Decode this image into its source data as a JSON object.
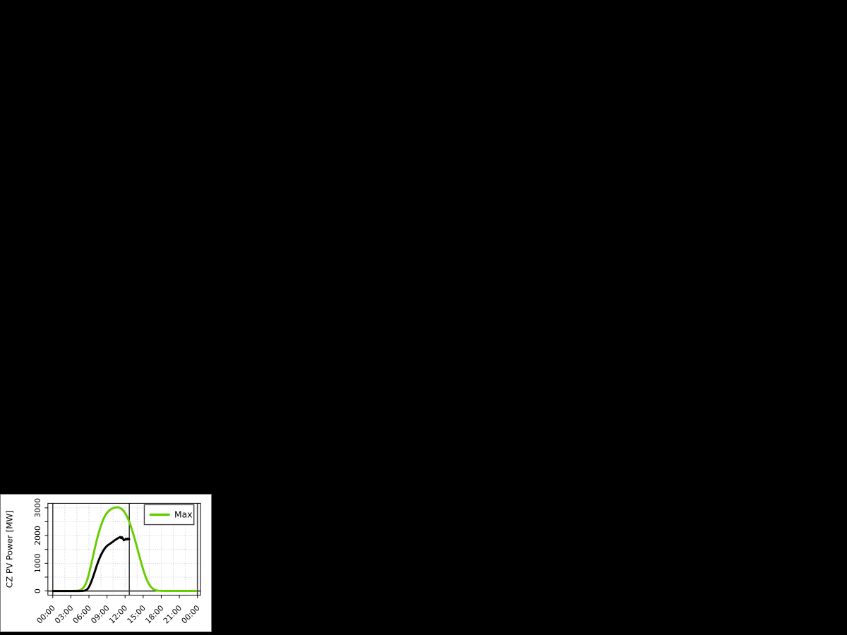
{
  "canvas": {
    "background": "#000000"
  },
  "panel": {
    "background": "#ffffff",
    "border_color": "#7a7a7a"
  },
  "chart_data": {
    "type": "line",
    "title": "",
    "xlabel": "",
    "ylabel": "CZ PV Power [MW]",
    "x_unit": "time of day (hours)",
    "x_ticks": {
      "positions": [
        0,
        3,
        6,
        9,
        12,
        15,
        18,
        21,
        24
      ],
      "labels": [
        "00:00",
        "03:00",
        "06:00",
        "09:00",
        "12:00",
        "15:00",
        "18:00",
        "21:00",
        "00:00"
      ]
    },
    "y_ticks": {
      "label_values": [
        0,
        1000,
        2000,
        3000
      ],
      "minor_step": 500
    },
    "ylim": [
      -150,
      3160
    ],
    "xlim": [
      -0.8,
      24.5
    ],
    "grid": {
      "on": true,
      "style": "dotted",
      "color": "#c4c4c4",
      "x_step_hours": 2,
      "y_step": 500
    },
    "reference_lines": {
      "color": "#3d3d3d",
      "vertical_hours": [
        0,
        12.7,
        24
      ],
      "horizontal_values": [
        0
      ]
    },
    "legend": {
      "position": "top-right",
      "entries": [
        {
          "label": "Max",
          "color": "#66CD00"
        }
      ]
    },
    "series": [
      {
        "id": "max",
        "legend_label": "Max",
        "color": "#66CD00",
        "width": 3,
        "points": [
          [
            0,
            3
          ],
          [
            1,
            3
          ],
          [
            2,
            3
          ],
          [
            3,
            3
          ],
          [
            3.5,
            4
          ],
          [
            4,
            8
          ],
          [
            4.5,
            25
          ],
          [
            4.75,
            55
          ],
          [
            5,
            100
          ],
          [
            5.25,
            170
          ],
          [
            5.5,
            270
          ],
          [
            5.75,
            420
          ],
          [
            6,
            620
          ],
          [
            6.25,
            850
          ],
          [
            6.5,
            1080
          ],
          [
            6.75,
            1320
          ],
          [
            7,
            1560
          ],
          [
            7.25,
            1790
          ],
          [
            7.5,
            2000
          ],
          [
            7.75,
            2190
          ],
          [
            8,
            2360
          ],
          [
            8.25,
            2510
          ],
          [
            8.5,
            2640
          ],
          [
            8.75,
            2740
          ],
          [
            9,
            2820
          ],
          [
            9.25,
            2880
          ],
          [
            9.5,
            2930
          ],
          [
            9.75,
            2965
          ],
          [
            10,
            2990
          ],
          [
            10.25,
            3008
          ],
          [
            10.5,
            3018
          ],
          [
            10.75,
            3020
          ],
          [
            11,
            3012
          ],
          [
            11.25,
            2990
          ],
          [
            11.5,
            2950
          ],
          [
            11.75,
            2890
          ],
          [
            12,
            2810
          ],
          [
            12.25,
            2715
          ],
          [
            12.5,
            2600
          ],
          [
            12.75,
            2465
          ],
          [
            13,
            2310
          ],
          [
            13.25,
            2140
          ],
          [
            13.5,
            1955
          ],
          [
            13.75,
            1760
          ],
          [
            14,
            1560
          ],
          [
            14.25,
            1355
          ],
          [
            14.5,
            1155
          ],
          [
            14.75,
            960
          ],
          [
            15,
            775
          ],
          [
            15.25,
            610
          ],
          [
            15.5,
            465
          ],
          [
            15.75,
            340
          ],
          [
            16,
            240
          ],
          [
            16.25,
            160
          ],
          [
            16.5,
            100
          ],
          [
            16.75,
            60
          ],
          [
            17,
            33
          ],
          [
            17.25,
            18
          ],
          [
            17.5,
            9
          ],
          [
            18,
            4
          ],
          [
            19,
            3
          ],
          [
            20,
            3
          ],
          [
            21,
            3
          ],
          [
            22,
            3
          ],
          [
            23,
            3
          ],
          [
            23.75,
            3
          ]
        ]
      },
      {
        "id": "actual",
        "legend_label": "",
        "color": "#000000",
        "width": 3,
        "points": [
          [
            0,
            0
          ],
          [
            1,
            0
          ],
          [
            2,
            0
          ],
          [
            3,
            0
          ],
          [
            4,
            0
          ],
          [
            4.5,
            0
          ],
          [
            5,
            5
          ],
          [
            5.25,
            10
          ],
          [
            5.5,
            25
          ],
          [
            5.75,
            65
          ],
          [
            6,
            140
          ],
          [
            6.25,
            255
          ],
          [
            6.5,
            395
          ],
          [
            6.75,
            550
          ],
          [
            7,
            715
          ],
          [
            7.25,
            880
          ],
          [
            7.5,
            1035
          ],
          [
            7.75,
            1175
          ],
          [
            8,
            1300
          ],
          [
            8.25,
            1405
          ],
          [
            8.5,
            1495
          ],
          [
            8.75,
            1570
          ],
          [
            9,
            1625
          ],
          [
            9.25,
            1670
          ],
          [
            9.5,
            1705
          ],
          [
            9.75,
            1745
          ],
          [
            10,
            1785
          ],
          [
            10.25,
            1825
          ],
          [
            10.5,
            1860
          ],
          [
            10.75,
            1895
          ],
          [
            11,
            1925
          ],
          [
            11.2,
            1950
          ],
          [
            11.35,
            1905
          ],
          [
            11.5,
            1935
          ],
          [
            11.65,
            1885
          ],
          [
            11.8,
            1830
          ],
          [
            12,
            1855
          ],
          [
            12.15,
            1885
          ],
          [
            12.3,
            1860
          ],
          [
            12.45,
            1890
          ],
          [
            12.6,
            1870
          ],
          [
            12.7,
            1865
          ]
        ]
      }
    ]
  }
}
